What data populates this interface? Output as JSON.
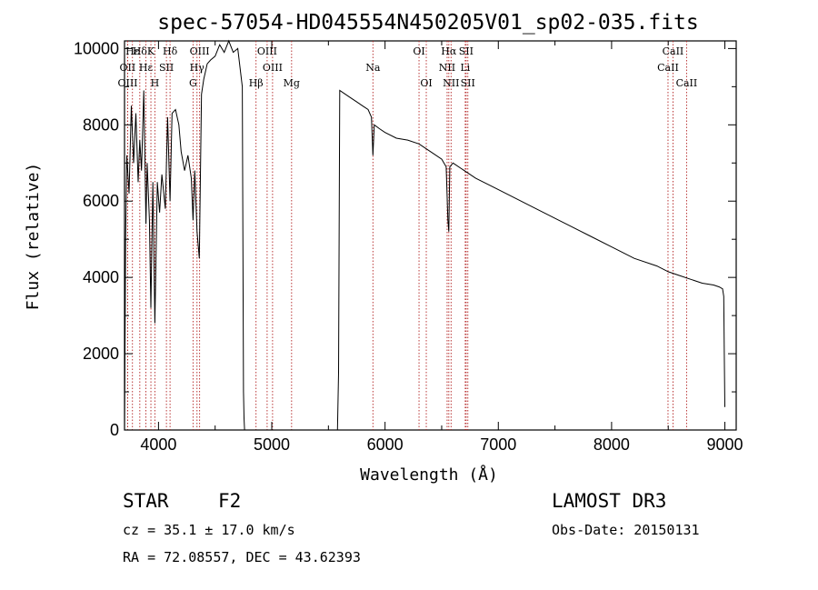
{
  "chart_data": {
    "type": "line",
    "title": "spec-57054-HD045554N450205V01_sp02-035.fits",
    "xlabel": "Wavelength (Å)",
    "ylabel": "Flux (relative)",
    "xlim": [
      3700,
      9100
    ],
    "ylim": [
      0,
      10200
    ],
    "xticks": [
      4000,
      5000,
      6000,
      7000,
      8000,
      9000
    ],
    "yticks": [
      0,
      2000,
      4000,
      6000,
      8000,
      10000
    ],
    "line_color": "#000000",
    "marker_color": "#b22222",
    "lines": [
      {
        "name": "Hε",
        "wave": 3770,
        "row": 0
      },
      {
        "name": "OII",
        "wave": 3727,
        "row": 1
      },
      {
        "name": "OIII",
        "wave": 3728,
        "row": 2
      },
      {
        "name": "Hδ",
        "wave": 3835,
        "row": 0
      },
      {
        "name": "K",
        "wave": 3933,
        "row": 0
      },
      {
        "name": "Hε",
        "wave": 3889,
        "row": 1
      },
      {
        "name": "H",
        "wave": 3968,
        "row": 2
      },
      {
        "name": "SII",
        "wave": 4070,
        "row": 1
      },
      {
        "name": "Hδ",
        "wave": 4102,
        "row": 0
      },
      {
        "name": "OIII",
        "wave": 4363,
        "row": 0
      },
      {
        "name": "Hγ",
        "wave": 4340,
        "row": 1
      },
      {
        "name": "G",
        "wave": 4305,
        "row": 2
      },
      {
        "name": "Hβ",
        "wave": 4861,
        "row": 2
      },
      {
        "name": "OIII",
        "wave": 4959,
        "row": 0
      },
      {
        "name": "OIII",
        "wave": 5007,
        "row": 1
      },
      {
        "name": "Mg",
        "wave": 5175,
        "row": 2
      },
      {
        "name": "Na",
        "wave": 5893,
        "row": 1
      },
      {
        "name": "OI",
        "wave": 6300,
        "row": 0
      },
      {
        "name": "OI",
        "wave": 6364,
        "row": 2
      },
      {
        "name": "Hα",
        "wave": 6563,
        "row": 0
      },
      {
        "name": "NII",
        "wave": 6548,
        "row": 1
      },
      {
        "name": "NII",
        "wave": 6583,
        "row": 2
      },
      {
        "name": "SII",
        "wave": 6716,
        "row": 0
      },
      {
        "name": "Li",
        "wave": 6708,
        "row": 1
      },
      {
        "name": "SII",
        "wave": 6731,
        "row": 2
      },
      {
        "name": "CaII",
        "wave": 8542,
        "row": 0
      },
      {
        "name": "CaII",
        "wave": 8498,
        "row": 1
      },
      {
        "name": "CaII",
        "wave": 8662,
        "row": 2
      }
    ],
    "spectrum": {
      "x": [
        3700,
        3710,
        3720,
        3740,
        3760,
        3780,
        3800,
        3820,
        3835,
        3850,
        3870,
        3889,
        3900,
        3920,
        3933,
        3950,
        3968,
        3990,
        4010,
        4030,
        4060,
        4080,
        4102,
        4120,
        4150,
        4180,
        4200,
        4230,
        4260,
        4290,
        4305,
        4320,
        4340,
        4360,
        4380,
        4400,
        4430,
        4460,
        4500,
        4540,
        4580,
        4620,
        4660,
        4700,
        4720,
        4740,
        4750,
        4755,
        4760,
        4770,
        5580,
        5590,
        5600,
        5650,
        5700,
        5750,
        5800,
        5850,
        5880,
        5893,
        5905,
        5950,
        6000,
        6100,
        6200,
        6300,
        6400,
        6500,
        6540,
        6555,
        6563,
        6572,
        6600,
        6700,
        6800,
        7000,
        7200,
        7400,
        7600,
        7800,
        8000,
        8200,
        8400,
        8500,
        8600,
        8700,
        8800,
        8900,
        8950,
        8980,
        8990,
        8995,
        9000
      ],
      "y": [
        0,
        5000,
        7200,
        6200,
        8500,
        7000,
        8300,
        6500,
        7600,
        6800,
        8900,
        5400,
        7000,
        5500,
        3200,
        6500,
        2800,
        6500,
        5700,
        6700,
        5800,
        8200,
        6000,
        8300,
        8400,
        8000,
        7300,
        6800,
        7200,
        6600,
        5500,
        6800,
        5200,
        4500,
        8800,
        9200,
        9600,
        9700,
        9800,
        10100,
        9900,
        10200,
        9900,
        10000,
        9500,
        9000,
        1000,
        300,
        0,
        0,
        0,
        1500,
        8900,
        8800,
        8700,
        8600,
        8500,
        8400,
        8200,
        7200,
        8000,
        7900,
        7800,
        7650,
        7600,
        7500,
        7300,
        7100,
        6900,
        5500,
        5200,
        6900,
        7000,
        6800,
        6600,
        6300,
        6000,
        5700,
        5400,
        5100,
        4800,
        4500,
        4300,
        4150,
        4050,
        3950,
        3850,
        3800,
        3750,
        3700,
        3500,
        2000,
        600
      ]
    }
  },
  "info": {
    "obj_class": "STAR",
    "subclass": "F2",
    "survey": "LAMOST DR3",
    "cz": "cz = 35.1 ± 17.0 km/s",
    "obs_date": "Obs-Date: 20150131",
    "coords": "RA =  72.08557, DEC =  43.62393"
  }
}
